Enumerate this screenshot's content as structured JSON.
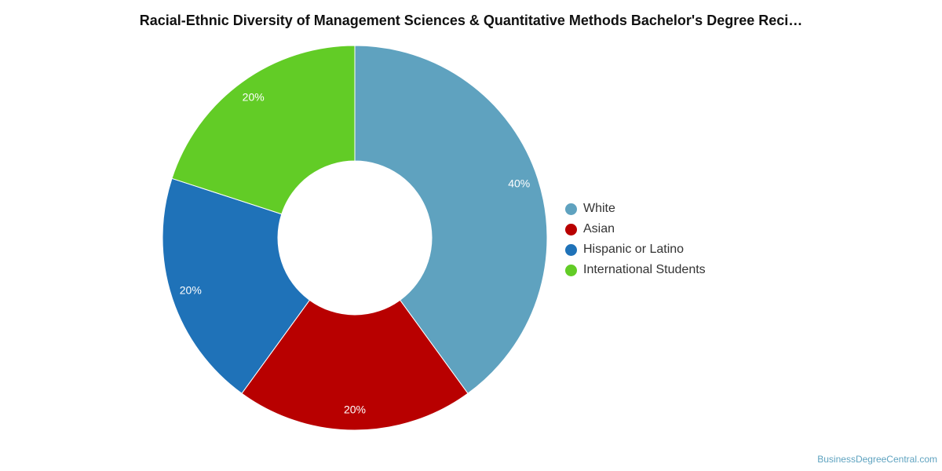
{
  "source": "BusinessDegreeCentral.com",
  "chart_data": {
    "type": "pie",
    "title": "Racial-Ethnic Diversity of Management Sciences & Quantitative Methods Bachelor's Degree Reci…",
    "categories": [
      "White",
      "Asian",
      "Hispanic or Latino",
      "International Students"
    ],
    "values": [
      40,
      20,
      20,
      20
    ],
    "labels": [
      "40%",
      "20%",
      "20%",
      "20%"
    ],
    "colors": [
      "#5fa2bf",
      "#b80000",
      "#1f72b8",
      "#62cc26"
    ],
    "donut": true,
    "legend_position": "right"
  }
}
